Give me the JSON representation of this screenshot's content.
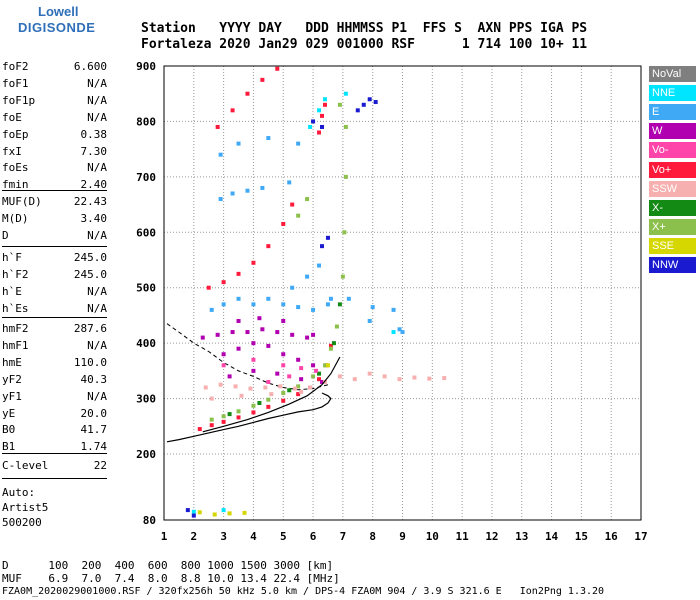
{
  "logo": {
    "line1": "Lowell",
    "line2": "DIGISONDE"
  },
  "header": {
    "line1": "Station   YYYY DAY   DDD HHMMSS P1  FFS S  AXN PPS IGA PS",
    "line2": "Fortaleza 2020 Jan29 029 001000 RSF      1 714 100 10+ 11"
  },
  "params_group1": [
    {
      "name": "foF2",
      "value": "6.600"
    },
    {
      "name": "foF1",
      "value": "N/A"
    },
    {
      "name": "foF1p",
      "value": "N/A"
    },
    {
      "name": "foE",
      "value": "N/A"
    },
    {
      "name": "foEp",
      "value": "0.38"
    },
    {
      "name": "fxI",
      "value": "7.30"
    },
    {
      "name": "foEs",
      "value": "N/A"
    },
    {
      "name": "fmin",
      "value": "2.40"
    }
  ],
  "params_group2": [
    {
      "name": "MUF(D)",
      "value": "22.43"
    },
    {
      "name": "M(D)",
      "value": "3.40"
    },
    {
      "name": "D",
      "value": "N/A"
    }
  ],
  "params_group3": [
    {
      "name": "h`F",
      "value": "245.0"
    },
    {
      "name": "h`F2",
      "value": "245.0"
    },
    {
      "name": "h`E",
      "value": "N/A"
    },
    {
      "name": "h`Es",
      "value": "N/A"
    }
  ],
  "params_group4": [
    {
      "name": "hmF2",
      "value": "287.6"
    },
    {
      "name": "hmF1",
      "value": "N/A"
    },
    {
      "name": "hmE",
      "value": "110.0"
    },
    {
      "name": "yF2",
      "value": "40.3"
    },
    {
      "name": "yF1",
      "value": "N/A"
    },
    {
      "name": "yE",
      "value": "20.0"
    },
    {
      "name": "B0",
      "value": "41.7"
    },
    {
      "name": "B1",
      "value": "1.74"
    }
  ],
  "params_group5": [
    {
      "name": "C-level",
      "value": "22"
    }
  ],
  "scaling": {
    "line1": "Auto:",
    "line2": "Artist5",
    "line3": "500200"
  },
  "legend": [
    {
      "label": "NoVal",
      "color": "#7f7f7f"
    },
    {
      "label": "NNE",
      "color": "#00e5ff"
    },
    {
      "label": "E",
      "color": "#3fa9f5"
    },
    {
      "label": "W",
      "color": "#b000b0"
    },
    {
      "label": "Vo-",
      "color": "#ff44aa"
    },
    {
      "label": "Vo+",
      "color": "#ff1a3c"
    },
    {
      "label": "SSW",
      "color": "#f6b0b0"
    },
    {
      "label": "X-",
      "color": "#138a13"
    },
    {
      "label": "X+",
      "color": "#8cc04c"
    },
    {
      "label": "SSE",
      "color": "#d6d600"
    },
    {
      "label": "NNW",
      "color": "#1a1ad0"
    }
  ],
  "footer": {
    "d_line": "D      100  200  400  600  800 1000 1500 3000 [km]",
    "muf_line": "MUF    6.9  7.0  7.4  8.0  8.8 10.0 13.4 22.4 [MHz]",
    "file_line": "FZA0M_2020029001000.RSF / 320fx256h 50 kHz 5.0 km / DPS-4 FZA0M 904 / 3.9 S 321.6 E   Ion2Png 1.3.20"
  },
  "chart_data": {
    "type": "scatter",
    "xlim": [
      1,
      17
    ],
    "ylim": [
      80,
      900
    ],
    "x_ticks": [
      "1",
      "2",
      "3",
      "4",
      "5",
      "6",
      "7",
      "8",
      "9",
      "10",
      "11",
      "12",
      "13",
      "14",
      "15",
      "16",
      "17"
    ],
    "y_ticks": [
      "80",
      "200",
      "300",
      "400",
      "500",
      "600",
      "700",
      "800",
      "900"
    ],
    "grid": true,
    "series": [
      {
        "name": "Vo+",
        "color": "#ff1a3c",
        "points": [
          [
            2.2,
            245
          ],
          [
            2.6,
            252
          ],
          [
            3.0,
            258
          ],
          [
            3.5,
            266
          ],
          [
            4.0,
            275
          ],
          [
            4.5,
            285
          ],
          [
            5.0,
            296
          ],
          [
            5.5,
            308
          ],
          [
            5.9,
            320
          ],
          [
            6.2,
            335
          ],
          [
            6.45,
            360
          ],
          [
            6.6,
            395
          ],
          [
            2.5,
            500
          ],
          [
            3.0,
            510
          ],
          [
            3.5,
            525
          ],
          [
            4.0,
            545
          ],
          [
            4.5,
            575
          ],
          [
            5.0,
            615
          ],
          [
            5.3,
            650
          ],
          [
            2.8,
            790
          ],
          [
            3.3,
            820
          ],
          [
            3.8,
            850
          ],
          [
            4.3,
            875
          ],
          [
            4.8,
            895
          ],
          [
            6.2,
            780
          ],
          [
            6.3,
            810
          ],
          [
            6.4,
            830
          ]
        ]
      },
      {
        "name": "X+",
        "color": "#8cc04c",
        "points": [
          [
            2.6,
            262
          ],
          [
            3.0,
            268
          ],
          [
            3.5,
            277
          ],
          [
            4.0,
            287
          ],
          [
            4.5,
            298
          ],
          [
            5.0,
            310
          ],
          [
            5.5,
            322
          ],
          [
            6.0,
            340
          ],
          [
            6.4,
            360
          ],
          [
            6.6,
            390
          ],
          [
            6.8,
            430
          ],
          [
            7.0,
            520
          ],
          [
            7.05,
            600
          ],
          [
            7.1,
            700
          ],
          [
            7.1,
            790
          ],
          [
            6.9,
            830
          ],
          [
            5.5,
            630
          ],
          [
            5.8,
            660
          ]
        ]
      },
      {
        "name": "X-",
        "color": "#138a13",
        "points": [
          [
            3.2,
            272
          ],
          [
            4.2,
            292
          ],
          [
            5.2,
            315
          ],
          [
            6.2,
            345
          ],
          [
            6.7,
            400
          ],
          [
            6.9,
            470
          ]
        ]
      },
      {
        "name": "E",
        "color": "#3fa9f5",
        "points": [
          [
            2.6,
            460
          ],
          [
            3.0,
            470
          ],
          [
            3.5,
            480
          ],
          [
            4.0,
            470
          ],
          [
            4.5,
            480
          ],
          [
            5.0,
            470
          ],
          [
            5.5,
            465
          ],
          [
            6.0,
            460
          ],
          [
            6.6,
            480
          ],
          [
            2.9,
            660
          ],
          [
            3.3,
            670
          ],
          [
            3.8,
            675
          ],
          [
            4.3,
            680
          ],
          [
            5.2,
            690
          ],
          [
            2.9,
            740
          ],
          [
            3.5,
            760
          ],
          [
            4.5,
            770
          ],
          [
            5.5,
            760
          ],
          [
            6.5,
            470
          ],
          [
            7.2,
            480
          ],
          [
            8.0,
            465
          ],
          [
            8.7,
            460
          ],
          [
            9.0,
            420
          ],
          [
            5.3,
            500
          ],
          [
            5.8,
            520
          ],
          [
            6.2,
            540
          ],
          [
            7.9,
            440
          ],
          [
            8.9,
            425
          ]
        ]
      },
      {
        "name": "W",
        "color": "#b000b0",
        "points": [
          [
            2.3,
            410
          ],
          [
            2.8,
            415
          ],
          [
            3.3,
            420
          ],
          [
            3.8,
            420
          ],
          [
            4.3,
            425
          ],
          [
            4.8,
            420
          ],
          [
            5.3,
            415
          ],
          [
            5.8,
            410
          ],
          [
            3.0,
            380
          ],
          [
            3.5,
            390
          ],
          [
            4.0,
            400
          ],
          [
            4.5,
            395
          ],
          [
            5.0,
            380
          ],
          [
            5.5,
            370
          ],
          [
            6.0,
            360
          ],
          [
            3.2,
            340
          ],
          [
            4.0,
            350
          ],
          [
            4.8,
            345
          ],
          [
            5.6,
            335
          ],
          [
            6.3,
            330
          ],
          [
            3.5,
            440
          ],
          [
            4.2,
            445
          ],
          [
            5.0,
            440
          ],
          [
            6.0,
            415
          ]
        ]
      },
      {
        "name": "Vo-",
        "color": "#ff44aa",
        "points": [
          [
            3.0,
            360
          ],
          [
            4.0,
            370
          ],
          [
            5.0,
            360
          ],
          [
            5.6,
            355
          ],
          [
            6.1,
            350
          ],
          [
            4.5,
            330
          ],
          [
            5.2,
            340
          ]
        ]
      },
      {
        "name": "SSW",
        "color": "#f6b0b0",
        "points": [
          [
            2.4,
            320
          ],
          [
            2.9,
            325
          ],
          [
            3.4,
            322
          ],
          [
            3.9,
            318
          ],
          [
            4.4,
            320
          ],
          [
            4.9,
            322
          ],
          [
            5.4,
            318
          ],
          [
            5.9,
            320
          ],
          [
            6.4,
            330
          ],
          [
            6.9,
            340
          ],
          [
            7.4,
            335
          ],
          [
            7.9,
            345
          ],
          [
            8.4,
            340
          ],
          [
            8.9,
            335
          ],
          [
            9.4,
            338
          ],
          [
            9.9,
            336
          ],
          [
            10.4,
            337
          ],
          [
            2.6,
            300
          ],
          [
            3.6,
            305
          ],
          [
            4.6,
            308
          ],
          [
            5.6,
            312
          ]
        ]
      },
      {
        "name": "NNE",
        "color": "#00e5ff",
        "points": [
          [
            6.2,
            820
          ],
          [
            6.4,
            840
          ],
          [
            7.1,
            850
          ],
          [
            8.7,
            420
          ],
          [
            5.9,
            790
          ],
          [
            2.0,
            95
          ],
          [
            3.0,
            98
          ]
        ]
      },
      {
        "name": "NNW",
        "color": "#1a1ad0",
        "points": [
          [
            6.3,
            575
          ],
          [
            6.5,
            590
          ],
          [
            7.7,
            830
          ],
          [
            7.9,
            840
          ],
          [
            8.1,
            835
          ],
          [
            7.5,
            820
          ],
          [
            6.0,
            800
          ],
          [
            6.3,
            790
          ],
          [
            2.0,
            88
          ],
          [
            1.8,
            98
          ]
        ]
      },
      {
        "name": "SSE",
        "color": "#d6d600",
        "points": [
          [
            2.7,
            90
          ],
          [
            3.2,
            92
          ],
          [
            3.7,
            93
          ],
          [
            6.5,
            360
          ],
          [
            2.2,
            94
          ]
        ]
      }
    ],
    "trace_lines": {
      "dashed": [
        [
          1.1,
          435
        ],
        [
          1.5,
          420
        ],
        [
          2.0,
          400
        ],
        [
          2.5,
          385
        ],
        [
          3.0,
          365
        ],
        [
          3.5,
          350
        ],
        [
          4.0,
          340
        ],
        [
          4.5,
          328
        ],
        [
          5.0,
          320
        ],
        [
          5.5,
          316
        ],
        [
          6.0,
          318
        ],
        [
          6.5,
          325
        ]
      ],
      "solid": [
        [
          1.1,
          222
        ],
        [
          1.5,
          226
        ],
        [
          2.0,
          232
        ],
        [
          2.5,
          238
        ],
        [
          3.0,
          244
        ],
        [
          3.5,
          250
        ],
        [
          4.0,
          257
        ],
        [
          4.5,
          264
        ],
        [
          5.0,
          270
        ],
        [
          5.5,
          276
        ],
        [
          6.0,
          280
        ],
        [
          6.3,
          285
        ],
        [
          6.5,
          292
        ],
        [
          6.6,
          300
        ],
        [
          6.5,
          305
        ],
        [
          6.3,
          310
        ]
      ],
      "solid_upper": [
        [
          2.3,
          240
        ],
        [
          3.0,
          250
        ],
        [
          3.8,
          262
        ],
        [
          4.5,
          275
        ],
        [
          5.2,
          290
        ],
        [
          5.8,
          305
        ],
        [
          6.3,
          325
        ],
        [
          6.6,
          345
        ],
        [
          6.9,
          375
        ]
      ]
    }
  }
}
